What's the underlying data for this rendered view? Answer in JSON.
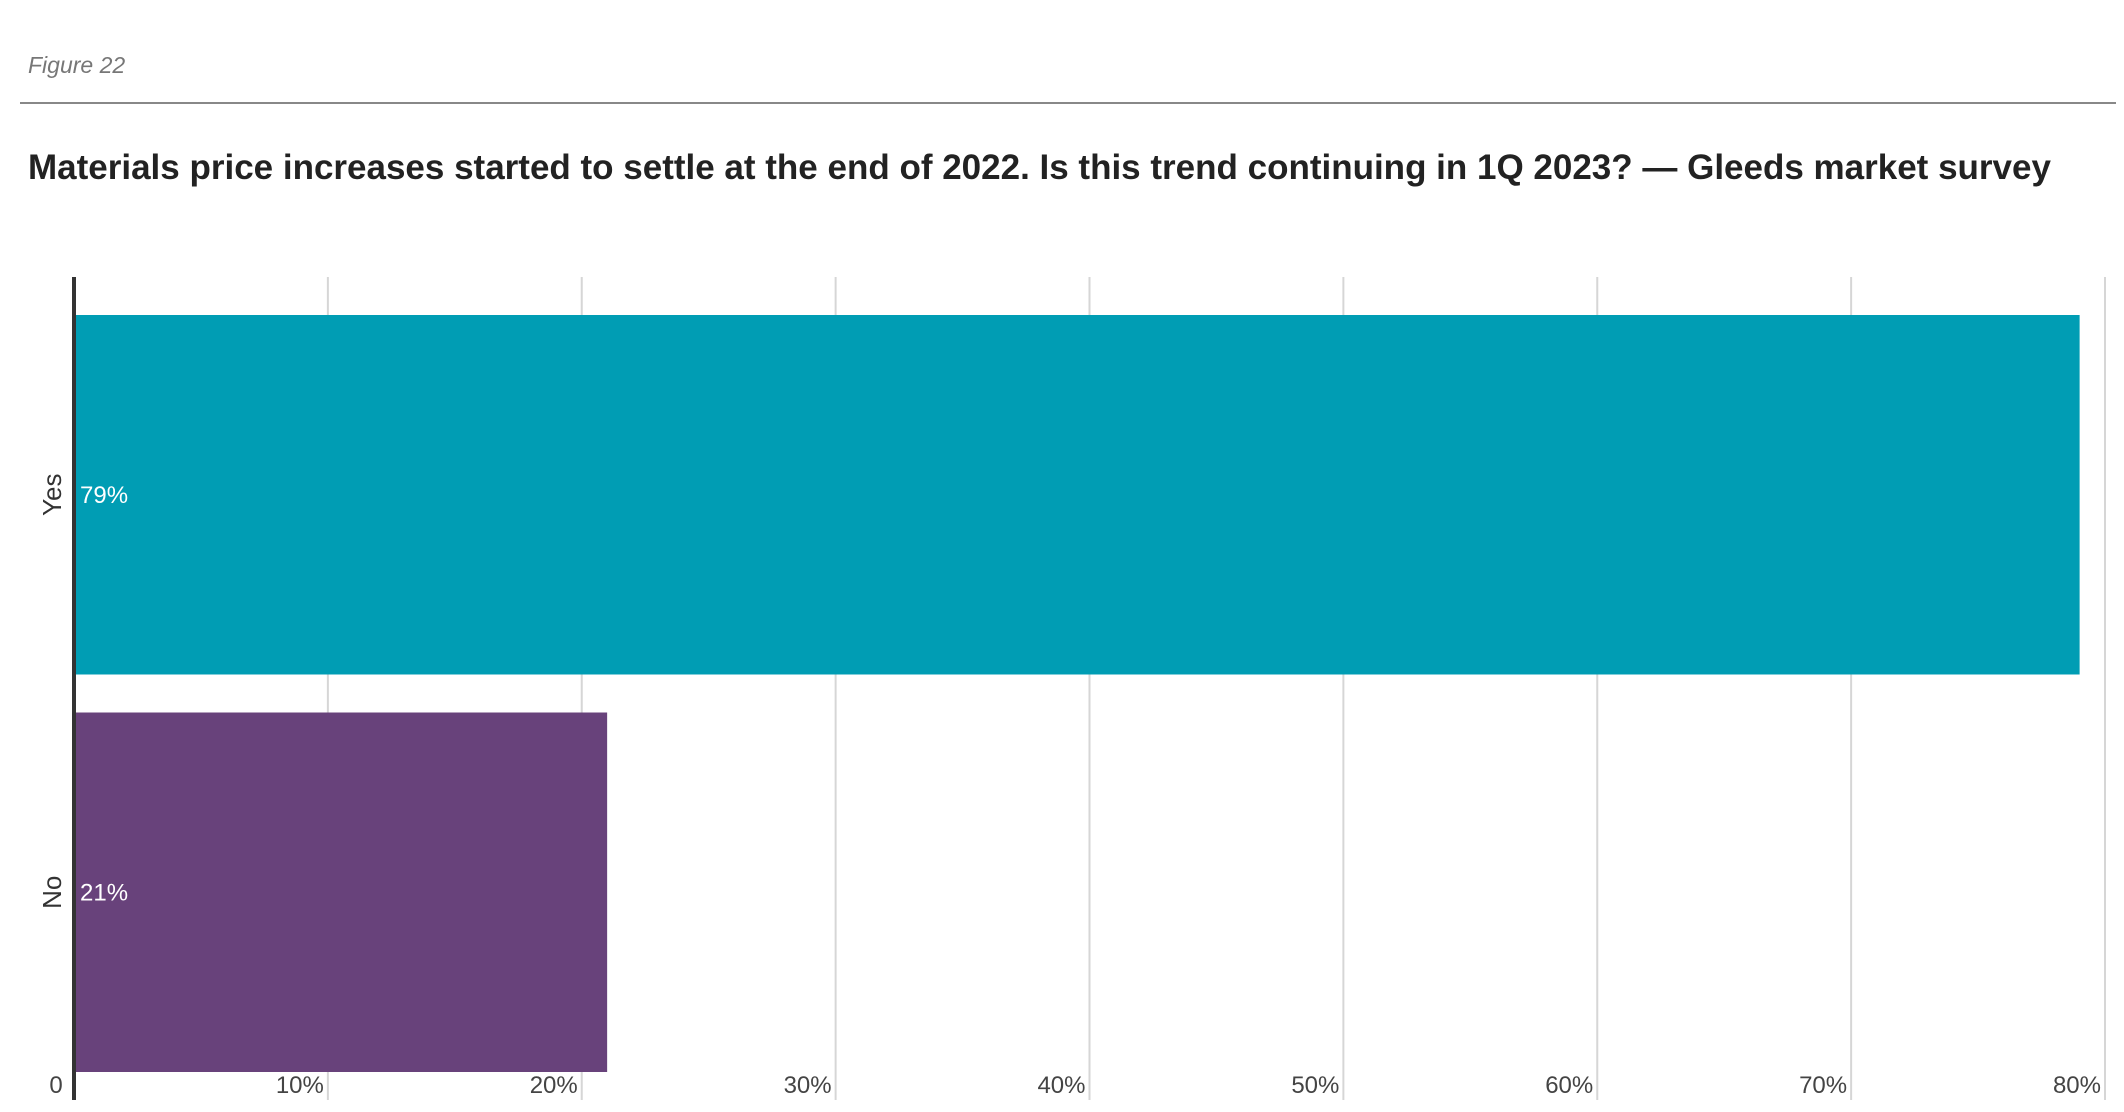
{
  "figure_label": "Figure 22",
  "chart_data": {
    "type": "bar",
    "orientation": "horizontal",
    "title": "Materials price increases started to settle at the end of 2022. Is this trend continuing in 1Q 2023? — Gleeds market survey",
    "categories": [
      "Yes",
      "No"
    ],
    "values": [
      79,
      21
    ],
    "data_labels": [
      "79%",
      "21%"
    ],
    "colors": [
      "#009db4",
      "#68427b"
    ],
    "xlim": [
      0,
      80
    ],
    "xticks": [
      0,
      10,
      20,
      30,
      40,
      50,
      60,
      70,
      80
    ],
    "xtick_labels": [
      "0",
      "10%",
      "20%",
      "30%",
      "40%",
      "50%",
      "60%",
      "70%",
      "80%"
    ],
    "grid": true,
    "legend": "none"
  }
}
